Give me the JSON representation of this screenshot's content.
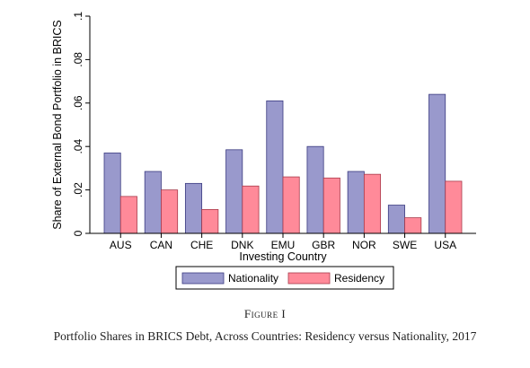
{
  "figure_label": "Figure I",
  "caption": "Portfolio Shares in BRICS Debt, Across Countries: Residency versus Nationality, 2017",
  "colors": {
    "nationality": "#9999cc",
    "nationality_edge": "#3a3a80",
    "residency": "#ff8a99",
    "residency_edge": "#a83a4a"
  },
  "chart_data": {
    "type": "bar",
    "title": "",
    "xlabel": "Investing Country",
    "ylabel": "Share of External Bond Portfolio in BRICS",
    "categories": [
      "AUS",
      "CAN",
      "CHE",
      "DNK",
      "EMU",
      "GBR",
      "NOR",
      "SWE",
      "USA"
    ],
    "series": [
      {
        "name": "Nationality",
        "values": [
          0.037,
          0.0285,
          0.023,
          0.0385,
          0.061,
          0.04,
          0.0285,
          0.013,
          0.064
        ]
      },
      {
        "name": "Residency",
        "values": [
          0.017,
          0.02,
          0.011,
          0.0218,
          0.026,
          0.0255,
          0.0272,
          0.0072,
          0.024
        ]
      }
    ],
    "ylim": [
      0,
      0.1
    ],
    "yticks": [
      0,
      0.02,
      0.04,
      0.06,
      0.08,
      0.1
    ],
    "ytick_labels": [
      "0",
      ".02",
      ".04",
      ".06",
      ".08",
      ".1"
    ],
    "grid": false,
    "legend_position": "bottom"
  }
}
